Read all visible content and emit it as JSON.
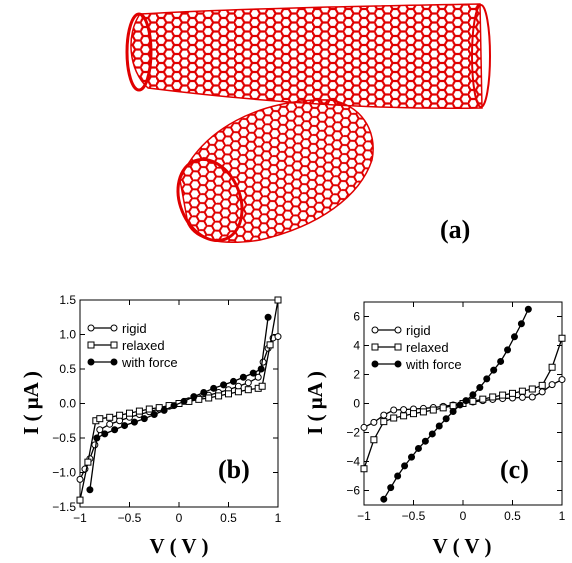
{
  "figure": {
    "panel_a_label": "(a)",
    "panel_a_description": "Two crossed carbon nanotubes rendered as red hexagonal lattices",
    "nanotube_color": "#e00000"
  },
  "chart_data": [
    {
      "type": "line",
      "panel": "(b)",
      "xlabel": "V ( V )",
      "ylabel": "I ( μA )",
      "xlim": [
        -1,
        1
      ],
      "ylim": [
        -1.5,
        1.5
      ],
      "xticks": [
        -1,
        -0.5,
        0,
        0.5,
        1
      ],
      "xtick_labels": [
        "−1",
        "−0.5",
        "0",
        "0.5",
        "1"
      ],
      "yticks": [
        -1.5,
        -1.0,
        -0.5,
        0,
        0.5,
        1.0,
        1.5
      ],
      "ytick_labels": [
        "−1.5",
        "−1.0",
        "−0.5",
        "0.0",
        "0.5",
        "1.0",
        "1.5"
      ],
      "legend_position": "top-left",
      "series": [
        {
          "name": "rigid",
          "marker": "open-circle",
          "x": [
            -1.0,
            -0.95,
            -0.9,
            -0.85,
            -0.8,
            -0.7,
            -0.6,
            -0.5,
            -0.4,
            -0.3,
            -0.2,
            -0.1,
            0.0,
            0.1,
            0.2,
            0.3,
            0.4,
            0.5,
            0.6,
            0.7,
            0.8,
            0.85,
            0.9,
            0.95,
            1.0
          ],
          "y": [
            -1.1,
            -0.95,
            -0.8,
            -0.6,
            -0.38,
            -0.3,
            -0.25,
            -0.2,
            -0.16,
            -0.12,
            -0.08,
            -0.04,
            0.0,
            0.04,
            0.08,
            0.12,
            0.16,
            0.2,
            0.25,
            0.3,
            0.38,
            0.6,
            0.8,
            0.95,
            0.97
          ]
        },
        {
          "name": "relaxed",
          "marker": "open-square",
          "x": [
            -1.0,
            -0.92,
            -0.84,
            -0.8,
            -0.7,
            -0.6,
            -0.5,
            -0.4,
            -0.3,
            -0.2,
            -0.1,
            0.0,
            0.1,
            0.2,
            0.3,
            0.4,
            0.5,
            0.6,
            0.7,
            0.8,
            0.84,
            0.92,
            1.0
          ],
          "y": [
            -1.4,
            -0.85,
            -0.25,
            -0.22,
            -0.2,
            -0.17,
            -0.14,
            -0.11,
            -0.08,
            -0.06,
            -0.03,
            0.0,
            0.03,
            0.06,
            0.08,
            0.11,
            0.14,
            0.17,
            0.2,
            0.22,
            0.25,
            0.85,
            1.5
          ]
        },
        {
          "name": "with force",
          "marker": "filled-circle",
          "x": [
            -0.9,
            -0.83,
            -0.75,
            -0.65,
            -0.55,
            -0.45,
            -0.35,
            -0.25,
            -0.15,
            -0.05,
            0.05,
            0.15,
            0.25,
            0.35,
            0.45,
            0.55,
            0.65,
            0.75,
            0.83,
            0.9
          ],
          "y": [
            -1.25,
            -0.5,
            -0.44,
            -0.38,
            -0.32,
            -0.27,
            -0.22,
            -0.16,
            -0.1,
            -0.03,
            0.03,
            0.1,
            0.16,
            0.22,
            0.27,
            0.32,
            0.38,
            0.44,
            0.5,
            1.25
          ]
        }
      ]
    },
    {
      "type": "line",
      "panel": "(c)",
      "xlabel": "V ( V )",
      "ylabel": "I ( μA )",
      "xlim": [
        -1,
        1
      ],
      "ylim": [
        -7,
        7
      ],
      "xticks": [
        -1,
        -0.5,
        0,
        0.5,
        1
      ],
      "xtick_labels": [
        "−1",
        "−0.5",
        "0",
        "0.5",
        "1"
      ],
      "yticks": [
        -6,
        -4,
        -2,
        0,
        2,
        4,
        6
      ],
      "ytick_labels": [
        "−6",
        "−4",
        "−2",
        "0",
        "2",
        "4",
        "6"
      ],
      "legend_position": "top-left",
      "series": [
        {
          "name": "rigid",
          "marker": "open-circle",
          "x": [
            -1.0,
            -0.9,
            -0.8,
            -0.7,
            -0.6,
            -0.5,
            -0.4,
            -0.3,
            -0.2,
            -0.1,
            0.0,
            0.1,
            0.2,
            0.3,
            0.4,
            0.5,
            0.6,
            0.7,
            0.8,
            0.9,
            1.0
          ],
          "y": [
            -1.65,
            -1.3,
            -0.8,
            -0.45,
            -0.42,
            -0.38,
            -0.34,
            -0.28,
            -0.2,
            -0.1,
            0.0,
            0.1,
            0.2,
            0.28,
            0.34,
            0.38,
            0.42,
            0.45,
            0.8,
            1.3,
            1.65
          ]
        },
        {
          "name": "relaxed",
          "marker": "open-square",
          "x": [
            -1.0,
            -0.9,
            -0.8,
            -0.7,
            -0.6,
            -0.5,
            -0.4,
            -0.3,
            -0.2,
            -0.1,
            0.0,
            0.1,
            0.2,
            0.3,
            0.4,
            0.5,
            0.6,
            0.7,
            0.8,
            0.9,
            1.0
          ],
          "y": [
            -4.5,
            -2.5,
            -1.25,
            -1.0,
            -0.85,
            -0.7,
            -0.58,
            -0.45,
            -0.3,
            -0.15,
            0.0,
            0.15,
            0.3,
            0.45,
            0.58,
            0.7,
            0.85,
            1.0,
            1.25,
            2.5,
            4.5
          ]
        },
        {
          "name": "with force",
          "marker": "filled-circle",
          "x": [
            -0.8,
            -0.73,
            -0.66,
            -0.59,
            -0.52,
            -0.45,
            -0.38,
            -0.31,
            -0.24,
            -0.17,
            -0.1,
            -0.03,
            0.03,
            0.1,
            0.17,
            0.24,
            0.31,
            0.38,
            0.45,
            0.52,
            0.59,
            0.66
          ],
          "y": [
            -6.6,
            -5.8,
            -5.0,
            -4.3,
            -3.7,
            -3.1,
            -2.6,
            -2.1,
            -1.55,
            -1.05,
            -0.55,
            -0.1,
            0.2,
            0.6,
            1.1,
            1.7,
            2.3,
            2.9,
            3.7,
            4.6,
            5.5,
            6.5
          ]
        }
      ]
    }
  ]
}
